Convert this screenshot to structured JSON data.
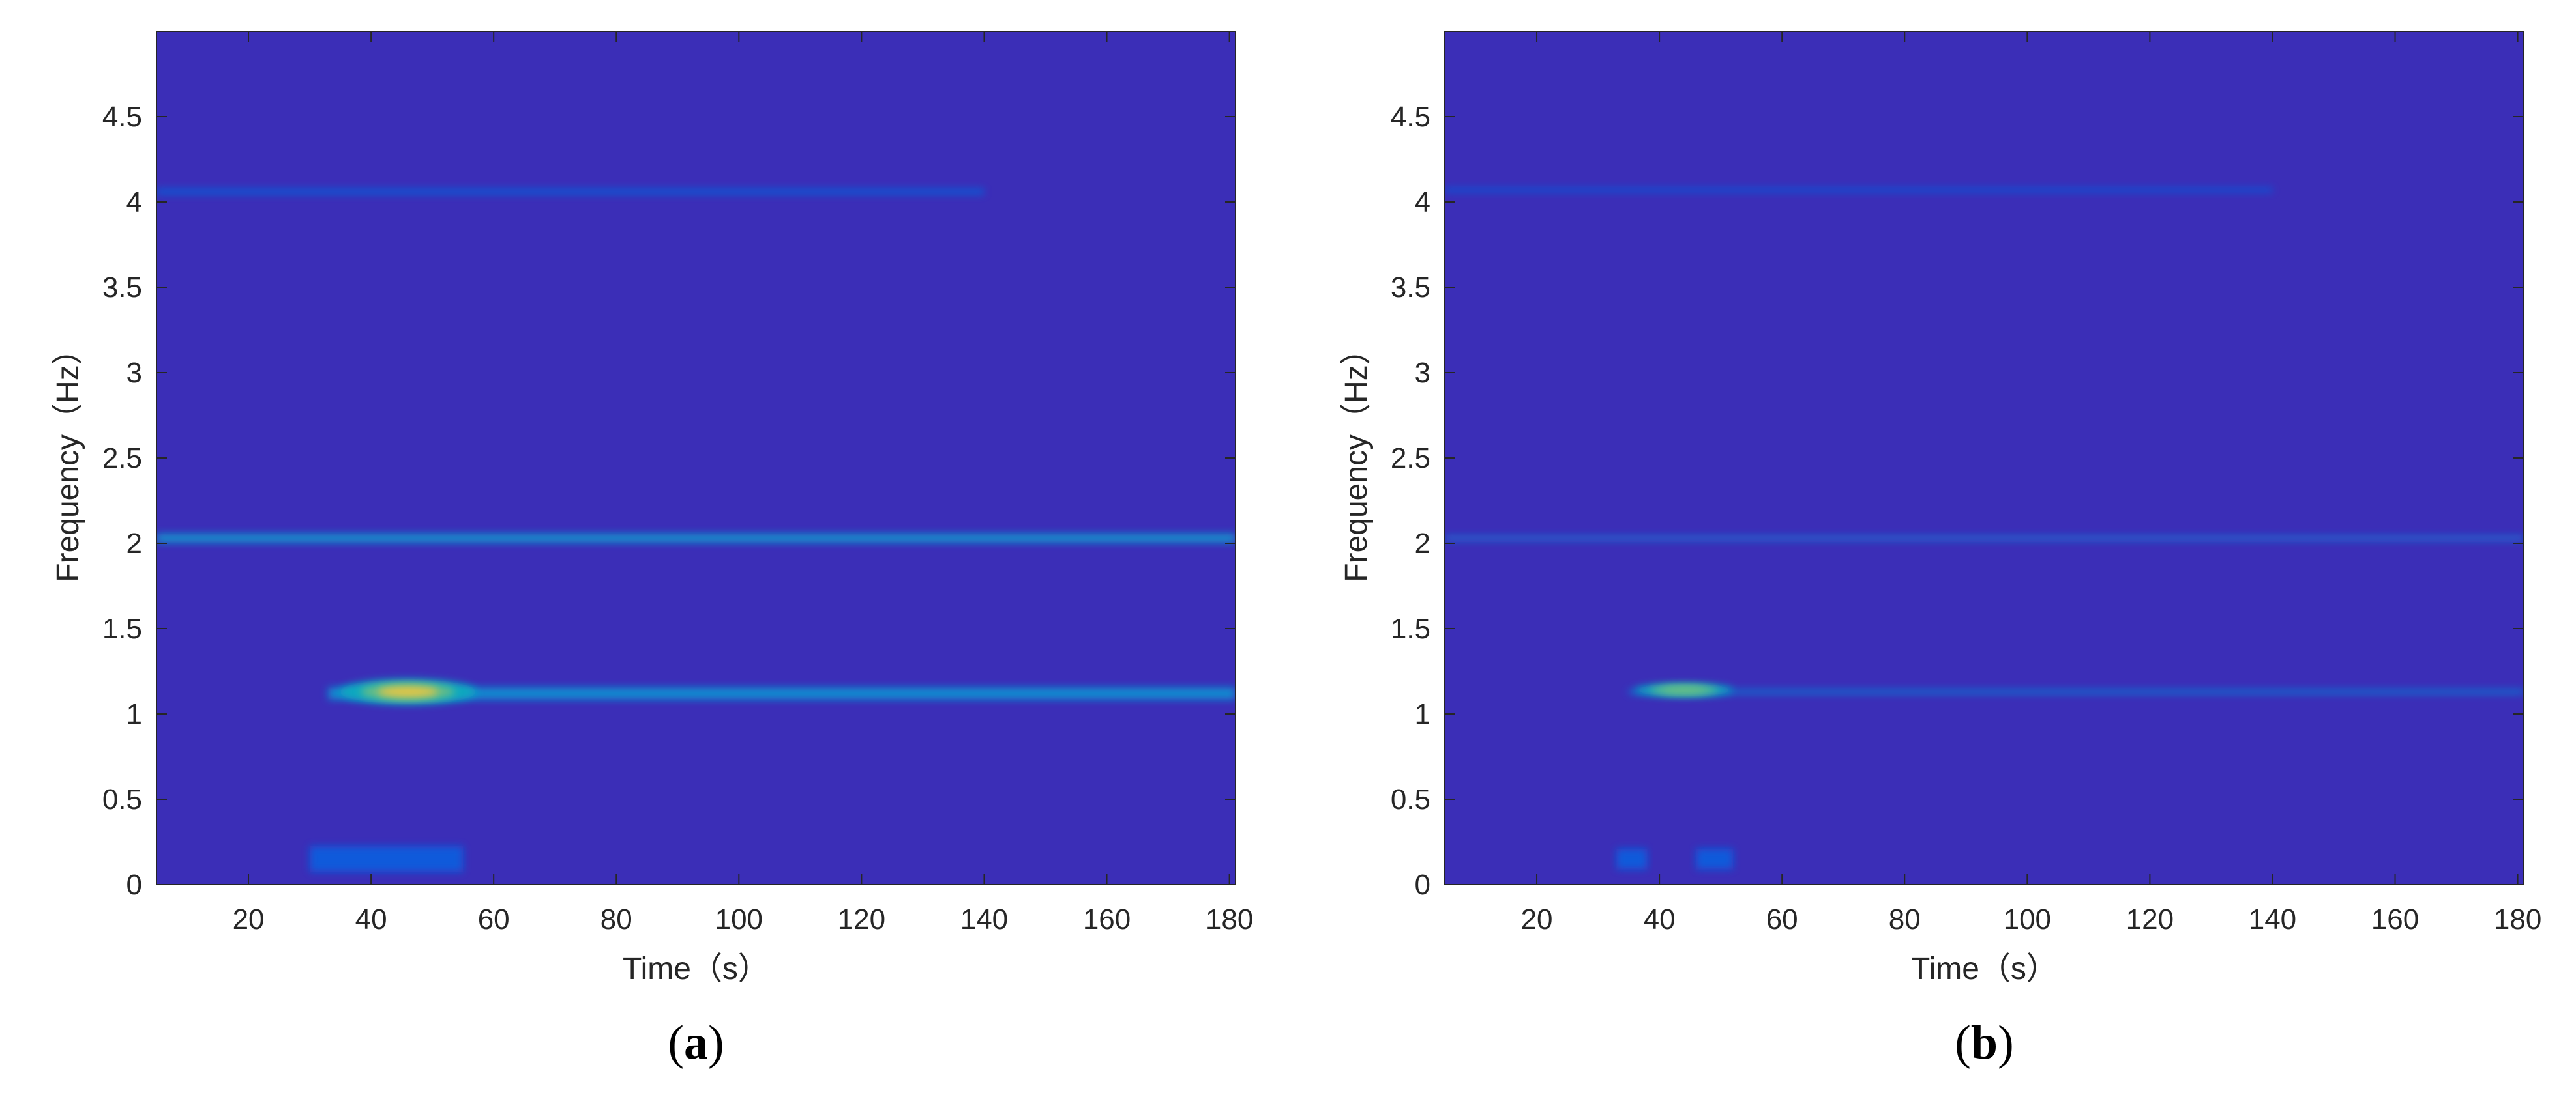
{
  "chart_data": [
    {
      "type": "heatmap",
      "panel_label": "(a)",
      "title": "",
      "xlabel": "Time（s）",
      "ylabel": "Frequency（Hz）",
      "xlim": [
        5,
        181
      ],
      "ylim": [
        0,
        5
      ],
      "xticks": [
        20,
        40,
        60,
        80,
        100,
        120,
        140,
        160,
        180
      ],
      "yticks": [
        0,
        0.5,
        1,
        1.5,
        2,
        2.5,
        3,
        3.5,
        4,
        4.5
      ],
      "colormap": "parula",
      "grid": false,
      "background_color": "#3b2eb7",
      "ridges": [
        {
          "t_start": 5,
          "t_end": 181,
          "freq": 2.03,
          "width": 0.05,
          "intensity": 0.32
        },
        {
          "t_start": 33,
          "t_end": 181,
          "freq": 1.12,
          "width": 0.07,
          "intensity": 0.28
        },
        {
          "t_start": 5,
          "t_end": 140,
          "freq": 4.06,
          "width": 0.03,
          "intensity": 0.1
        },
        {
          "t_start": 30,
          "t_end": 55,
          "freq": 0.15,
          "width": 0.15,
          "intensity": 0.08
        }
      ],
      "hotspots": [
        {
          "t": 46,
          "freq": 1.13,
          "width_t": 7,
          "width_f": 0.045,
          "intensity": 0.9
        }
      ]
    },
    {
      "type": "heatmap",
      "panel_label": "(b)",
      "title": "",
      "xlabel": "Time（s）",
      "ylabel": "Frequency（Hz）",
      "xlim": [
        5,
        181
      ],
      "ylim": [
        0,
        5
      ],
      "xticks": [
        20,
        40,
        60,
        80,
        100,
        120,
        140,
        160,
        180
      ],
      "yticks": [
        0,
        0.5,
        1,
        1.5,
        2,
        2.5,
        3,
        3.5,
        4,
        4.5
      ],
      "colormap": "parula",
      "grid": false,
      "background_color": "#3b2eb7",
      "ridges": [
        {
          "t_start": 5,
          "t_end": 181,
          "freq": 2.03,
          "width": 0.012,
          "intensity": 0.2
        },
        {
          "t_start": 35,
          "t_end": 181,
          "freq": 1.13,
          "width": 0.012,
          "intensity": 0.22
        },
        {
          "t_start": 5,
          "t_end": 140,
          "freq": 4.07,
          "width": 0.01,
          "intensity": 0.08
        },
        {
          "t_start": 33,
          "t_end": 38,
          "freq": 0.15,
          "width": 0.12,
          "intensity": 0.08
        },
        {
          "t_start": 46,
          "t_end": 52,
          "freq": 0.15,
          "width": 0.12,
          "intensity": 0.08
        }
      ],
      "hotspots": [
        {
          "t": 44,
          "freq": 1.14,
          "width_t": 5,
          "width_f": 0.015,
          "intensity": 0.65
        }
      ]
    }
  ]
}
